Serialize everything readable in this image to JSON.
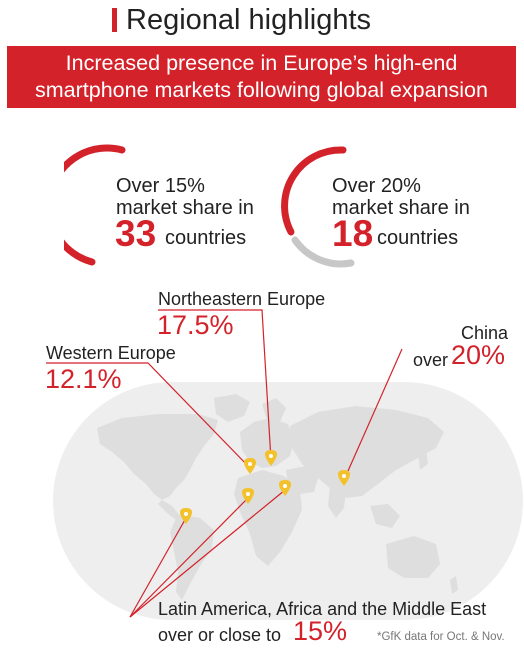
{
  "header": {
    "title": "Regional highlights"
  },
  "banner": {
    "line1": "Increased presence in Europe’s high-end",
    "line2": "smartphone markets following global expansion"
  },
  "stats": [
    {
      "line1": "Over 15%",
      "line2": "market share in",
      "count": "33",
      "suffix": "countries",
      "fraction": 0.6
    },
    {
      "line1": "Over 20%",
      "line2": "market share in",
      "count": "18",
      "suffix": "countries",
      "fraction": 0.7
    }
  ],
  "regions": {
    "northeastern_europe": {
      "name": "Northeastern Europe",
      "value": "17.5%"
    },
    "western_europe": {
      "name": "Western Europe",
      "value": "12.1%"
    },
    "china": {
      "name": "China",
      "prefix": "over",
      "value": "20%"
    },
    "latam_africa_me": {
      "name": "Latin America, Africa and the Middle East",
      "prefix": "over or close to",
      "value": "15%"
    }
  },
  "footnote": "*GfK data for Oct. & Nov.",
  "colors": {
    "accent": "#d3222a",
    "map_land": "#dedede",
    "map_bg": "#eeeeee",
    "pin": "#f3c12c",
    "arc_gray": "#c7c7c7"
  }
}
